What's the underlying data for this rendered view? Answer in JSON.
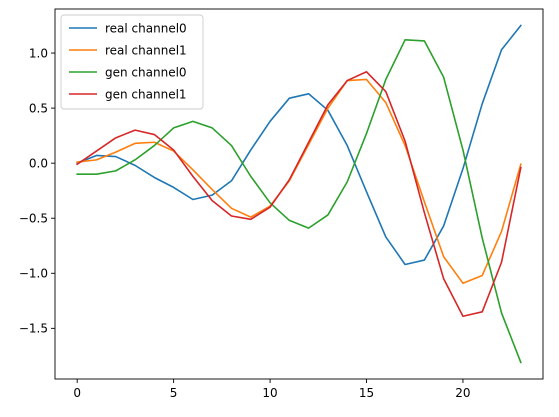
{
  "chart_data": {
    "type": "line",
    "x": [
      0,
      1,
      2,
      3,
      4,
      5,
      6,
      7,
      8,
      9,
      10,
      11,
      12,
      13,
      14,
      15,
      16,
      17,
      18,
      19,
      20,
      21,
      22,
      23
    ],
    "series": [
      {
        "name": "real channel0",
        "color": "#1f77b4",
        "values": [
          0.0,
          0.07,
          0.06,
          -0.02,
          -0.13,
          -0.22,
          -0.33,
          -0.29,
          -0.16,
          0.12,
          0.38,
          0.59,
          0.63,
          0.48,
          0.16,
          -0.26,
          -0.67,
          -0.92,
          -0.88,
          -0.57,
          -0.05,
          0.54,
          1.03,
          1.25
        ]
      },
      {
        "name": "real channel1",
        "color": "#ff7f0e",
        "values": [
          0.01,
          0.03,
          0.1,
          0.18,
          0.19,
          0.11,
          -0.06,
          -0.24,
          -0.41,
          -0.49,
          -0.39,
          -0.16,
          0.17,
          0.5,
          0.75,
          0.76,
          0.55,
          0.16,
          -0.35,
          -0.85,
          -1.09,
          -1.02,
          -0.62,
          -0.01
        ]
      },
      {
        "name": "gen channel0",
        "color": "#2ca02c",
        "values": [
          -0.1,
          -0.1,
          -0.07,
          0.03,
          0.16,
          0.32,
          0.38,
          0.32,
          0.16,
          -0.12,
          -0.36,
          -0.52,
          -0.59,
          -0.47,
          -0.17,
          0.27,
          0.76,
          1.12,
          1.11,
          0.78,
          0.12,
          -0.68,
          -1.36,
          -1.81
        ]
      },
      {
        "name": "gen channel1",
        "color": "#d62728",
        "values": [
          -0.01,
          0.11,
          0.23,
          0.3,
          0.26,
          0.12,
          -0.12,
          -0.34,
          -0.48,
          -0.51,
          -0.4,
          -0.15,
          0.19,
          0.53,
          0.75,
          0.83,
          0.65,
          0.2,
          -0.45,
          -1.05,
          -1.39,
          -1.35,
          -0.9,
          -0.04
        ]
      }
    ],
    "xticks": [
      0,
      5,
      10,
      15,
      20
    ],
    "yticks": [
      -1.5,
      -1.0,
      -0.5,
      0.0,
      0.5,
      1.0
    ],
    "ytick_labels": [
      "−1.5",
      "−1.0",
      "−0.5",
      "0.0",
      "0.5",
      "1.0"
    ],
    "xlim": [
      -1.15,
      24.15
    ],
    "ylim": [
      -1.96,
      1.4
    ],
    "title": "",
    "xlabel": "",
    "ylabel": "",
    "grid": false,
    "legend_position": "upper-left"
  }
}
